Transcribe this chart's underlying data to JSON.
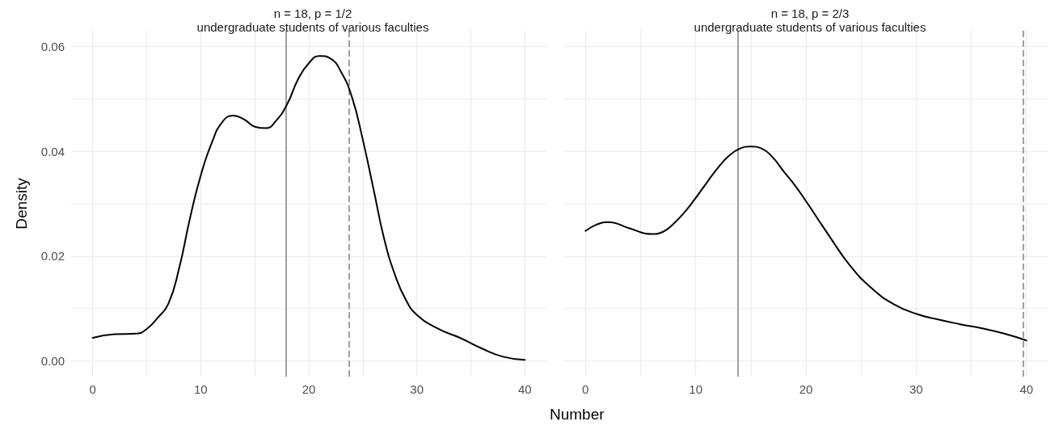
{
  "chart_data": [
    {
      "type": "line",
      "title": "n = 18, p = 1/2",
      "subtitle": "undergraduate students of various faculties",
      "ylabel": "Density",
      "series": [
        {
          "color": "#000000",
          "x": [
            0,
            2,
            4,
            5,
            6,
            7,
            8,
            9,
            10,
            11,
            12,
            13,
            14,
            15,
            16,
            17,
            18,
            19,
            20,
            21,
            22,
            23,
            24,
            25,
            26,
            27,
            28,
            29,
            30,
            32,
            34,
            36,
            38,
            40
          ],
          "values": [
            0.0044,
            0.0051,
            0.0052,
            0.0061,
            0.0082,
            0.0109,
            0.0177,
            0.0272,
            0.0354,
            0.0415,
            0.0456,
            0.0468,
            0.0461,
            0.0447,
            0.0444,
            0.0459,
            0.049,
            0.0537,
            0.0568,
            0.0582,
            0.0577,
            0.0551,
            0.0503,
            0.0422,
            0.0327,
            0.0231,
            0.0163,
            0.0116,
            0.0088,
            0.0061,
            0.0044,
            0.0024,
            0.0008,
            0.0002
          ]
        }
      ],
      "xlim": [
        -2,
        42
      ],
      "xticks": [
        0,
        {
          "value": 5,
          "label": null
        },
        10,
        {
          "value": 15,
          "label": null
        },
        20,
        {
          "value": 25,
          "label": null
        },
        30,
        {
          "value": 35,
          "label": null
        },
        40
      ],
      "ylim": [
        -0.003,
        0.063
      ],
      "yticks": [
        {
          "value": 0,
          "label": "0.00"
        },
        {
          "value": 0.01,
          "label": null
        },
        {
          "value": 0.02,
          "label": "0.02"
        },
        {
          "value": 0.03,
          "label": null
        },
        {
          "value": 0.04,
          "label": "0.04"
        },
        {
          "value": 0.05,
          "label": null
        },
        {
          "value": 0.06,
          "label": "0.06"
        }
      ],
      "ref_lines": [
        {
          "axis": "x",
          "value": 17.9,
          "color": "#a0a0a0",
          "line_style": "solid"
        },
        {
          "axis": "x",
          "value": 23.7,
          "color": "#a0a0a0",
          "line_style": "dashed"
        }
      ],
      "grid": true,
      "marker": "none",
      "line_style": "solid"
    },
    {
      "type": "line",
      "title": "n = 18, p = 2/3",
      "subtitle": "undergraduate students of various faculties",
      "xlabel": "Number",
      "series": [
        {
          "color": "#000000",
          "x": [
            0,
            1,
            2,
            4,
            6,
            7,
            8,
            9,
            10,
            11,
            12,
            13,
            14,
            15,
            16,
            17,
            18,
            19,
            20,
            22,
            24,
            26,
            28,
            30,
            32,
            34,
            36,
            38,
            40
          ],
          "values": [
            0.0248,
            0.026,
            0.0265,
            0.0253,
            0.0242,
            0.0246,
            0.0262,
            0.0284,
            0.0311,
            0.034,
            0.0368,
            0.0391,
            0.0405,
            0.0409,
            0.0405,
            0.0388,
            0.0361,
            0.0335,
            0.0305,
            0.0242,
            0.0182,
            0.0138,
            0.0108,
            0.009,
            0.0079,
            0.007,
            0.0062,
            0.0052,
            0.0039
          ]
        }
      ],
      "xlim": [
        -2,
        42
      ],
      "xticks": [
        0,
        {
          "value": 5,
          "label": null
        },
        10,
        {
          "value": 15,
          "label": null
        },
        20,
        {
          "value": 25,
          "label": null
        },
        30,
        {
          "value": 35,
          "label": null
        },
        40
      ],
      "ylim": [
        -0.003,
        0.063
      ],
      "yticks": [
        {
          "value": 0,
          "label": null
        },
        {
          "value": 0.01,
          "label": null
        },
        {
          "value": 0.02,
          "label": null
        },
        {
          "value": 0.03,
          "label": null
        },
        {
          "value": 0.04,
          "label": null
        },
        {
          "value": 0.05,
          "label": null
        },
        {
          "value": 0.06,
          "label": null
        }
      ],
      "ref_lines": [
        {
          "axis": "x",
          "value": 13.8,
          "color": "#a0a0a0",
          "line_style": "solid"
        },
        {
          "axis": "x",
          "value": 39.7,
          "color": "#a0a0a0",
          "line_style": "dashed"
        }
      ],
      "grid": true,
      "marker": "none",
      "line_style": "solid",
      "tick_labels": "x"
    }
  ]
}
